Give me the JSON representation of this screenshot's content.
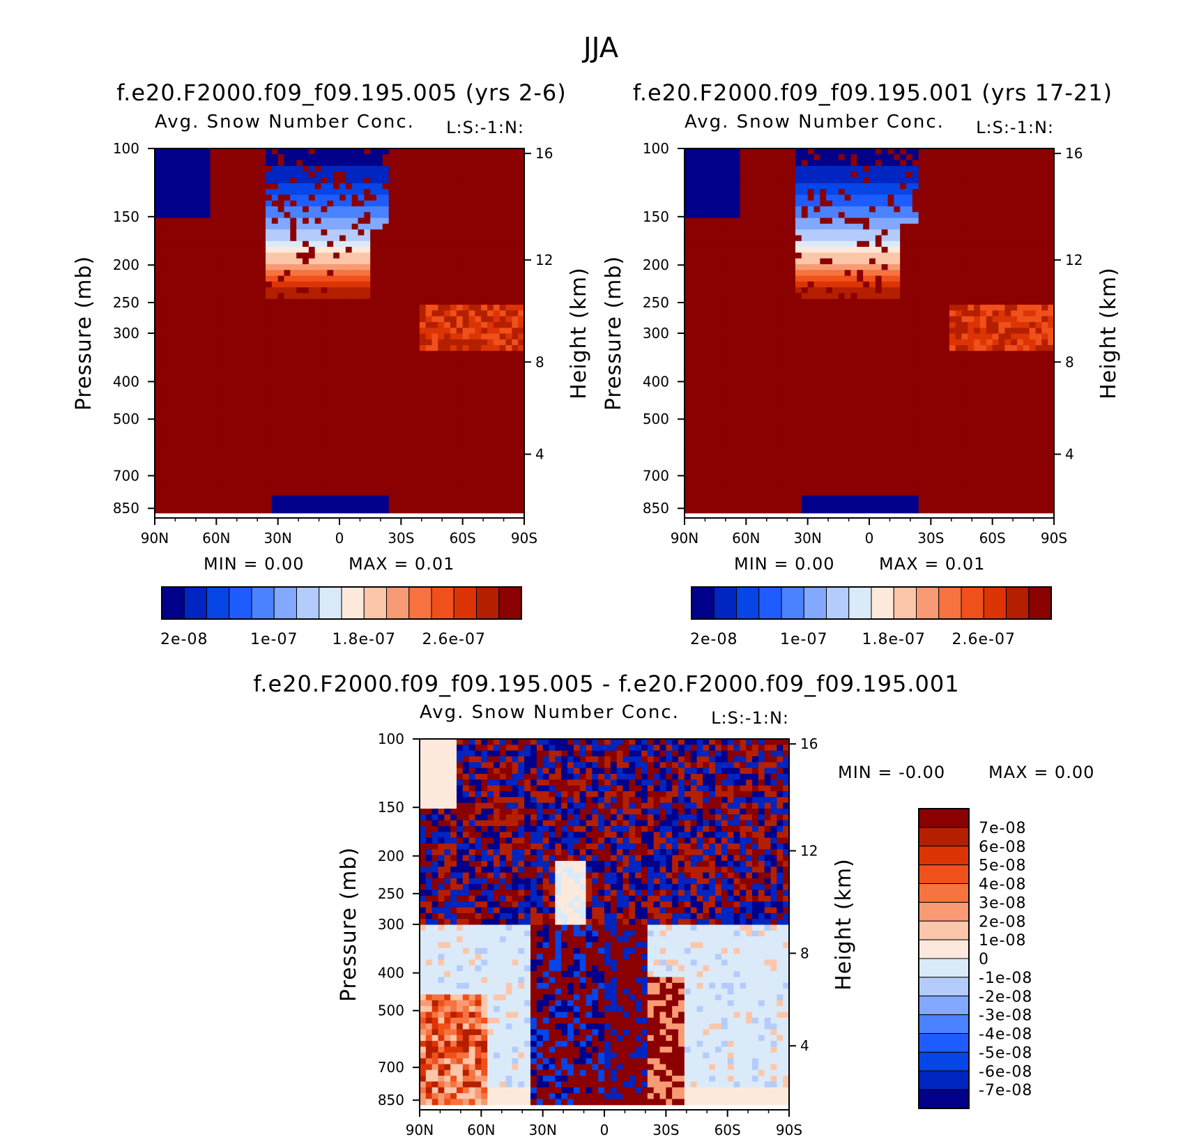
{
  "figure_title": "JJA",
  "chart_data": [
    {
      "type": "heatmap",
      "title": "f.e20.F2000.f09_f09.195.005 (yrs 2-6)",
      "subtitle": "Avg. Snow Number Conc.",
      "corner_label": "L:S:-1:N:",
      "ylabel": "Pressure (mb)",
      "ylabel_right": "Height (km)",
      "x_ticks": [
        "90N",
        "60N",
        "30N",
        "0",
        "30S",
        "60S",
        "90S"
      ],
      "y_ticks": [
        "100",
        "150",
        "200",
        "250",
        "300",
        "400",
        "500",
        "700",
        "850"
      ],
      "y_ticks_right": [
        "16",
        "12",
        "8",
        "4"
      ],
      "min_text": "MIN =     0.00",
      "max_text": "MAX =     0.01",
      "colorbar_labels": [
        "2e-08",
        "1e-07",
        "1.8e-07",
        "2.6e-07"
      ],
      "colorbar_orientation": "horizontal",
      "levels": [
        2e-08,
        4e-08,
        6e-08,
        8e-08,
        1e-07,
        1.2e-07,
        1.4e-07,
        1.6e-07,
        1.8e-07,
        2e-07,
        2.2e-07,
        2.4e-07,
        2.6e-07,
        2.8e-07
      ]
    },
    {
      "type": "heatmap",
      "title": "f.e20.F2000.f09_f09.195.001 (yrs 17-21)",
      "subtitle": "Avg. Snow Number Conc.",
      "corner_label": "L:S:-1:N:",
      "ylabel": "Pressure (mb)",
      "ylabel_right": "Height (km)",
      "x_ticks": [
        "90N",
        "60N",
        "30N",
        "0",
        "30S",
        "60S",
        "90S"
      ],
      "y_ticks": [
        "100",
        "150",
        "200",
        "250",
        "300",
        "400",
        "500",
        "700",
        "850"
      ],
      "y_ticks_right": [
        "16",
        "12",
        "8",
        "4"
      ],
      "min_text": "MIN =     0.00",
      "max_text": "MAX =     0.01",
      "colorbar_labels": [
        "2e-08",
        "1e-07",
        "1.8e-07",
        "2.6e-07"
      ],
      "colorbar_orientation": "horizontal",
      "levels": [
        2e-08,
        4e-08,
        6e-08,
        8e-08,
        1e-07,
        1.2e-07,
        1.4e-07,
        1.6e-07,
        1.8e-07,
        2e-07,
        2.2e-07,
        2.4e-07,
        2.6e-07,
        2.8e-07
      ]
    },
    {
      "type": "heatmap",
      "title": "f.e20.F2000.f09_f09.195.005 - f.e20.F2000.f09_f09.195.001",
      "subtitle": "Avg. Snow Number Conc.",
      "corner_label": "L:S:-1:N:",
      "ylabel": "Pressure (mb)",
      "ylabel_right": "Height (km)",
      "x_ticks": [
        "90N",
        "60N",
        "30N",
        "0",
        "30S",
        "60S",
        "90S"
      ],
      "y_ticks": [
        "100",
        "150",
        "200",
        "250",
        "300",
        "400",
        "500",
        "700",
        "850"
      ],
      "y_ticks_right": [
        "16",
        "12",
        "8",
        "4"
      ],
      "min_text": "MIN =    -0.00",
      "max_text": "MAX =     0.00",
      "colorbar_labels": [
        "7e-08",
        "6e-08",
        "5e-08",
        "4e-08",
        "3e-08",
        "2e-08",
        "1e-08",
        "0",
        "-1e-08",
        "-2e-08",
        "-3e-08",
        "-4e-08",
        "-5e-08",
        "-6e-08",
        "-7e-08"
      ],
      "colorbar_orientation": "vertical",
      "levels": [
        -7e-08,
        -6e-08,
        -5e-08,
        -4e-08,
        -3e-08,
        -2e-08,
        -1e-08,
        0,
        1e-08,
        2e-08,
        3e-08,
        4e-08,
        5e-08,
        6e-08,
        7e-08
      ]
    }
  ],
  "palette_abs": [
    "#00008b",
    "#0025c0",
    "#0645e6",
    "#1f5cff",
    "#4a82ff",
    "#82a8ff",
    "#b4ccfb",
    "#dbeaf9",
    "#fde9dc",
    "#fbc6aa",
    "#f89b74",
    "#f7733f",
    "#f0501a",
    "#dd3405",
    "#b41f00",
    "#8b0000"
  ],
  "palette_diff": [
    "#00008b",
    "#0025c0",
    "#0645e6",
    "#1f5cff",
    "#4a82ff",
    "#82a8ff",
    "#b4ccfb",
    "#dbeaf9",
    "#fde9dc",
    "#fbc6aa",
    "#f89b74",
    "#f7733f",
    "#f0501a",
    "#dd3405",
    "#b41f00",
    "#8b0000"
  ]
}
